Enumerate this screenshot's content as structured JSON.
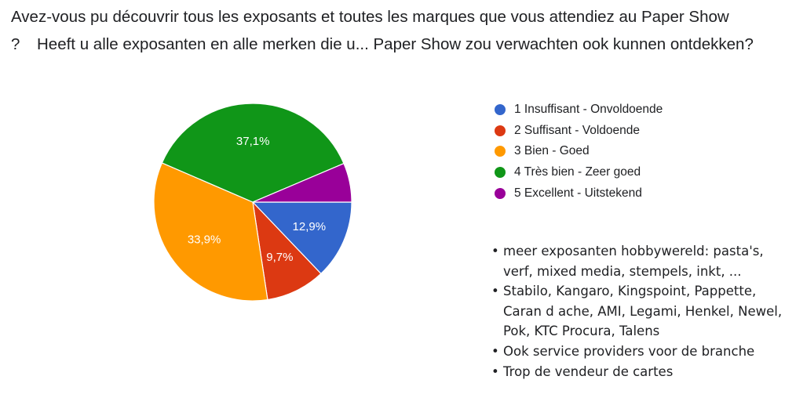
{
  "title": {
    "line1": "Avez-vous pu découvrir tous les exposants et toutes les marques que vous attendiez au Paper Show",
    "line2_prefix": "?",
    "line2_text": "Heeft u alle exposanten en alle merken die u... Paper Show zou verwachten ook kunnen ontdekken?"
  },
  "chart_data": {
    "type": "pie",
    "title": "Avez-vous pu découvrir tous les exposants et toutes les marques que vous attendiez au Paper Show ? Heeft u alle exposanten en alle merken die u... Paper Show zou verwachten ook kunnen ontdekken?",
    "categories": [
      "1 Insuffisant - Onvoldoende",
      "2 Suffisant - Voldoende",
      "3 Bien - Goed",
      "4 Très bien - Zeer goed",
      "5 Excellent - Uitstekend"
    ],
    "values": [
      12.9,
      9.7,
      33.9,
      37.1,
      6.4
    ],
    "data_labels": [
      "12,9%",
      "9,7%",
      "33,9%",
      "37,1%",
      ""
    ],
    "colors": [
      "#3366cc",
      "#dc3912",
      "#ff9900",
      "#109618",
      "#990099"
    ],
    "legend_position": "right"
  },
  "notes": [
    "meer exposanten hobbywereld: pasta's, verf, mixed media, stempels, inkt, ...",
    "Stabilo, Kangaro, Kingspoint, Pappette, Caran d ache, AMI, Legami, Henkel, Newel, Pok, KTC Procura, Talens",
    "Ook service providers voor de branche",
    "Trop de vendeur de cartes"
  ]
}
